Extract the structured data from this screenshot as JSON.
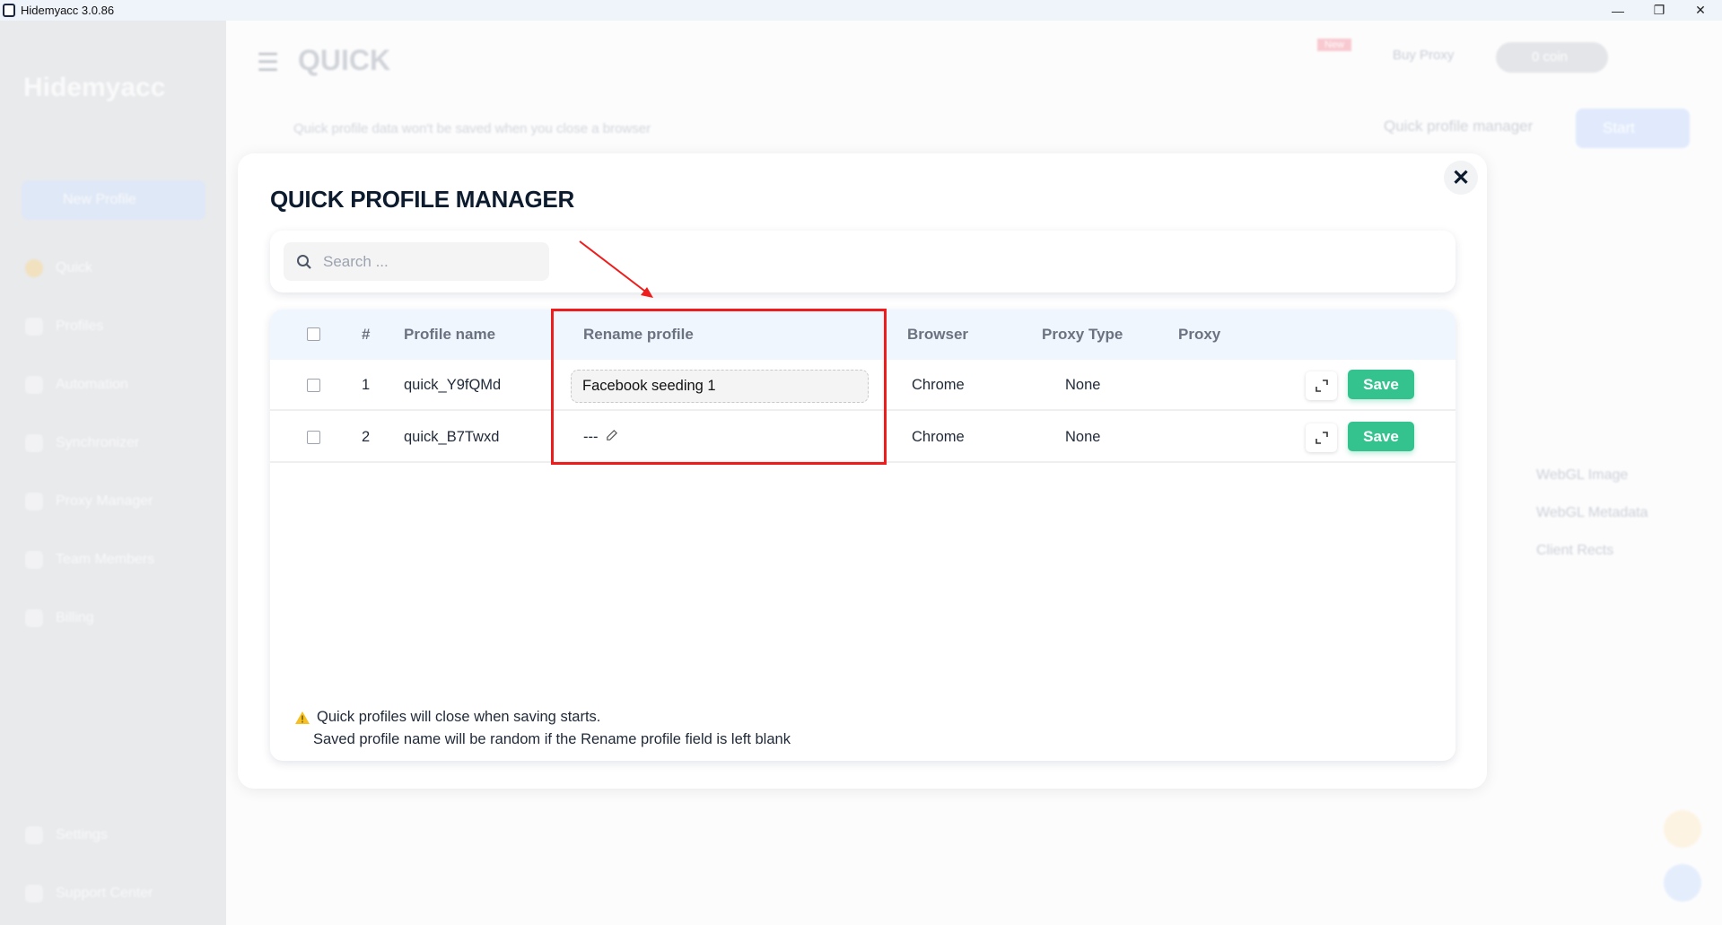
{
  "window": {
    "title": "Hidemyacc 3.0.86",
    "minimize": "—",
    "restore": "❐",
    "close": "✕"
  },
  "background": {
    "page_title": "QUICK",
    "logo_text": "Hidemyacc",
    "new_profile": "New Profile",
    "banner": "Quick profile data won't be saved when you close a browser",
    "quick_profile_manager_button": "Quick profile manager",
    "start_button": "Start",
    "badge": "New",
    "buy_proxy": "Buy Proxy",
    "coins": "0 coin",
    "sidebar_items": [
      "Quick",
      "Profiles",
      "Automation",
      "Synchronizer",
      "Proxy Manager",
      "Team Members",
      "Billing"
    ],
    "sidebar_bottom": [
      "Settings",
      "Support Center"
    ],
    "right_options": [
      "WebGL Image",
      "WebGL Metadata",
      "Client Rects"
    ]
  },
  "modal": {
    "title": "QUICK PROFILE MANAGER",
    "search_placeholder": "Search ...",
    "columns": [
      "#",
      "Profile name",
      "Rename profile",
      "Browser",
      "Proxy Type",
      "Proxy"
    ],
    "rows": [
      {
        "index": "1",
        "profile_name": "quick_Y9fQMd",
        "rename": "Facebook seeding 1",
        "browser": "Chrome",
        "proxy_type": "None",
        "proxy": "",
        "save": "Save"
      },
      {
        "index": "2",
        "profile_name": "quick_B7Twxd",
        "rename": "---",
        "browser": "Chrome",
        "proxy_type": "None",
        "proxy": "",
        "save": "Save"
      }
    ],
    "notes": [
      "Quick profiles will close when saving starts.",
      "Saved profile name will be random if the Rename profile field is left blank"
    ]
  },
  "colors": {
    "save": "#34c38f",
    "highlight": "#ee1c1c",
    "title": "#0d1b2e",
    "header_bg": "#f0f6fe"
  }
}
